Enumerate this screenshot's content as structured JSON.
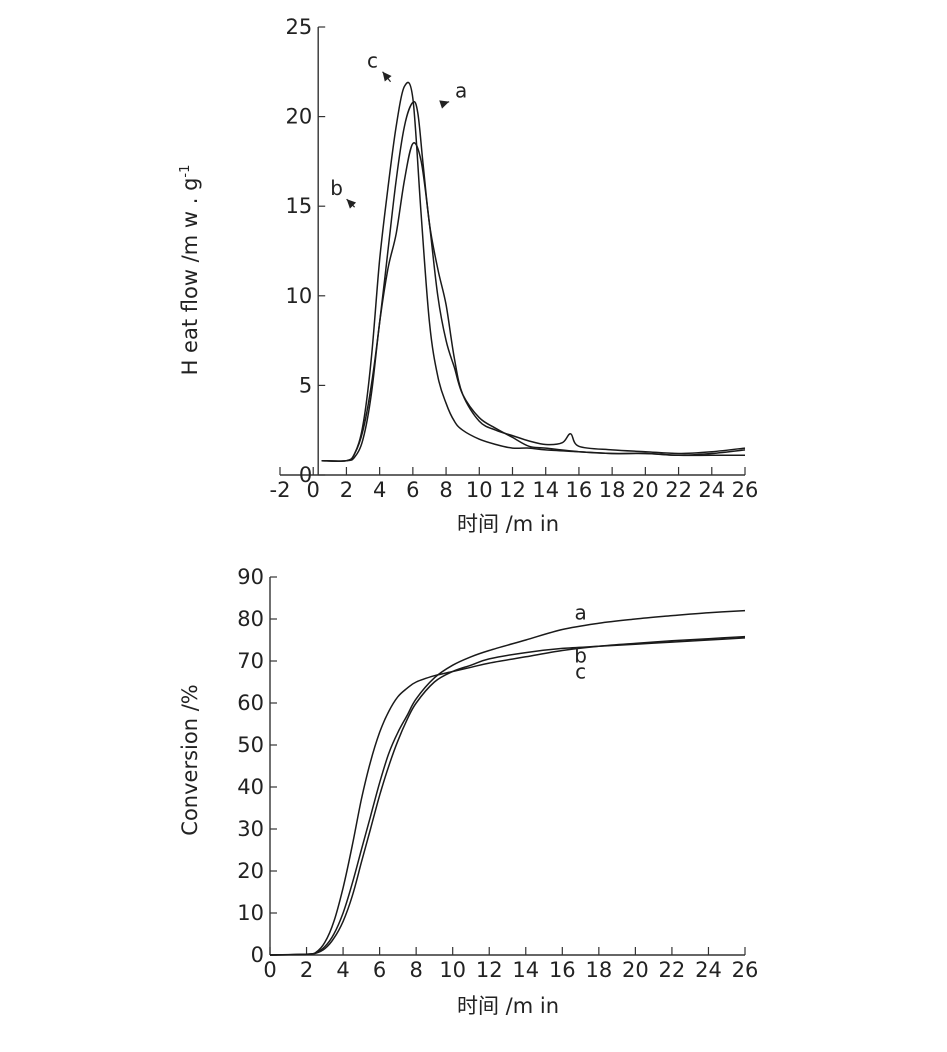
{
  "chart_data": [
    {
      "type": "line",
      "xlabel": "时间 /m in",
      "ylabel": "H eat flow /m w . g",
      "ylabel_superscript": "-1",
      "xlim": [
        -2,
        26
      ],
      "ylim": [
        0,
        25
      ],
      "xticks": [
        "-2",
        "0",
        "2",
        "4",
        "6",
        "8",
        "10",
        "12",
        "14",
        "16",
        "18",
        "20",
        "22",
        "24",
        "26"
      ],
      "yticks": [
        "0",
        "5",
        "10",
        "15",
        "20",
        "25"
      ],
      "series": [
        {
          "name": "a",
          "x": [
            0.5,
            2,
            2.5,
            3,
            3.5,
            4,
            4.5,
            5,
            5.5,
            6,
            6.3,
            6.6,
            7,
            7.5,
            8,
            8.5,
            9,
            10,
            11,
            12,
            13,
            14,
            15,
            15.5,
            16,
            18,
            20,
            22,
            24,
            26
          ],
          "y": [
            0.8,
            0.8,
            1.2,
            2.5,
            5,
            8.5,
            12.5,
            16.5,
            19.5,
            20.8,
            20.2,
            17.5,
            14,
            11.5,
            9.5,
            6.5,
            4.5,
            3,
            2.5,
            2.2,
            1.9,
            1.7,
            1.8,
            2.3,
            1.6,
            1.4,
            1.3,
            1.2,
            1.3,
            1.5
          ]
        },
        {
          "name": "b",
          "x": [
            0.5,
            2,
            2.5,
            3,
            3.5,
            4,
            4.5,
            5,
            5.5,
            6,
            6.5,
            7,
            7.5,
            8,
            8.5,
            9,
            10,
            11,
            12,
            13,
            14,
            16,
            18,
            20,
            22,
            24,
            26
          ],
          "y": [
            0.8,
            0.8,
            1,
            2,
            4.5,
            8.5,
            11.5,
            13.5,
            16.5,
            18.5,
            17.5,
            14,
            10,
            7.5,
            6,
            4.5,
            3.2,
            2.6,
            2.1,
            1.6,
            1.5,
            1.3,
            1.2,
            1.2,
            1.1,
            1.2,
            1.4
          ]
        },
        {
          "name": "c",
          "x": [
            0.5,
            2,
            2.5,
            3,
            3.5,
            4,
            4.5,
            5,
            5.5,
            6,
            6.5,
            7,
            7.5,
            8,
            8.5,
            9,
            10,
            11,
            12,
            13,
            14,
            16,
            18,
            20,
            22,
            24,
            26
          ],
          "y": [
            0.8,
            0.8,
            1.2,
            2.8,
            6.5,
            12,
            16,
            19.5,
            21.7,
            21,
            14.5,
            8.5,
            5.5,
            4,
            3,
            2.5,
            2,
            1.7,
            1.5,
            1.5,
            1.4,
            1.3,
            1.2,
            1.2,
            1.1,
            1.1,
            1.1
          ]
        }
      ],
      "annotations": [
        {
          "text": "c",
          "near_x": 5.5,
          "near_y": 21.5
        },
        {
          "text": "a",
          "near_x": 6.5,
          "near_y": 20.5
        },
        {
          "text": "b",
          "near_x": 4.3,
          "near_y": 14.5
        }
      ]
    },
    {
      "type": "line",
      "xlabel": "时间 /m in",
      "ylabel": "Conversion /%",
      "xlim": [
        0,
        26
      ],
      "ylim": [
        0,
        90
      ],
      "xticks": [
        "0",
        "2",
        "4",
        "6",
        "8",
        "10",
        "12",
        "14",
        "16",
        "18",
        "20",
        "22",
        "24",
        "26"
      ],
      "yticks": [
        "0",
        "10",
        "20",
        "30",
        "40",
        "50",
        "60",
        "70",
        "80",
        "90"
      ],
      "series": [
        {
          "name": "a",
          "x": [
            0,
            2,
            2.5,
            3,
            3.5,
            4,
            4.5,
            5,
            5.5,
            6,
            6.5,
            7,
            7.5,
            8,
            9,
            10,
            11,
            12,
            14,
            16,
            18,
            20,
            22,
            24,
            26
          ],
          "y": [
            0,
            0.2,
            0.5,
            2,
            5,
            10,
            17,
            25,
            33,
            41,
            48,
            53,
            57,
            61,
            66,
            69,
            71,
            72.5,
            75,
            77.5,
            79,
            80,
            80.8,
            81.5,
            82
          ]
        },
        {
          "name": "b",
          "x": [
            0,
            2,
            2.5,
            3,
            3.5,
            4,
            4.5,
            5,
            5.5,
            6,
            6.5,
            7,
            7.5,
            8,
            9,
            10,
            11,
            12,
            14,
            16,
            18,
            20,
            22,
            24,
            26
          ],
          "y": [
            0,
            0.2,
            0.4,
            1.5,
            4,
            8,
            14,
            22,
            30,
            38,
            45,
            51,
            56,
            60,
            65,
            67.5,
            69,
            70.5,
            72,
            73,
            73.5,
            74,
            74.5,
            75,
            75.5
          ]
        },
        {
          "name": "c",
          "x": [
            0,
            2,
            2.5,
            3,
            3.5,
            4,
            4.5,
            5,
            5.5,
            6,
            6.5,
            7,
            7.5,
            8,
            9,
            10,
            11,
            12,
            14,
            16,
            18,
            20,
            22,
            24,
            26
          ],
          "y": [
            0,
            0.2,
            0.6,
            3,
            8,
            16,
            26,
            37,
            46,
            53,
            58,
            61.5,
            63.5,
            65,
            66.5,
            67.5,
            68.5,
            69.5,
            71,
            72.5,
            73.5,
            74.2,
            74.8,
            75.3,
            75.8
          ]
        }
      ],
      "annotations": [
        {
          "text": "a",
          "near_x": 17,
          "near_y": 78
        },
        {
          "text": "b",
          "near_x": 17,
          "near_y": 73
        },
        {
          "text": "c",
          "near_x": 17,
          "near_y": 73
        }
      ]
    }
  ]
}
